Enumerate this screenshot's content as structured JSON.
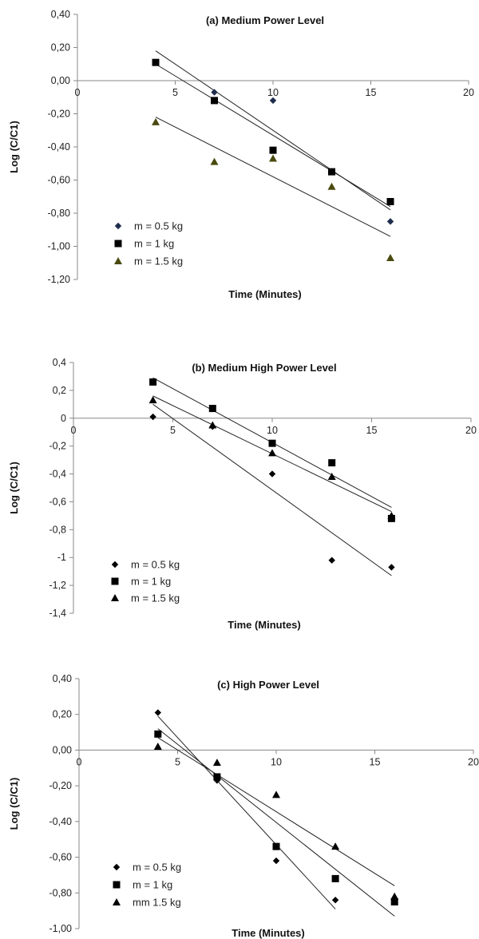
{
  "chart_data": [
    {
      "type": "scatter",
      "title": "(a) Medium Power Level",
      "xlabel": "Time (Minutes)",
      "ylabel": "Log (C/C1)",
      "xlim": [
        0,
        20
      ],
      "ylim": [
        -1.2,
        0.4
      ],
      "xticks": [
        "0",
        "5",
        "10",
        "15",
        "20"
      ],
      "yticks": [
        "0,40",
        "0,20",
        "0,00",
        "-0,20",
        "-0,40",
        "-0,60",
        "-0,80",
        "-1,00",
        "-1,20"
      ],
      "legend_position": "bottom-left",
      "series": [
        {
          "name": "m = 0.5 kg",
          "marker": "diamond",
          "color": "#1f2d4d",
          "x": [
            4,
            7,
            10,
            13,
            16
          ],
          "y": [
            0.11,
            -0.07,
            -0.12,
            -0.55,
            -0.85
          ],
          "trend": [
            [
              4,
              0.18
            ],
            [
              16,
              -0.78
            ]
          ]
        },
        {
          "name": "m = 1 kg",
          "marker": "square",
          "color": "#000000",
          "x": [
            4,
            7,
            10,
            13,
            16
          ],
          "y": [
            0.11,
            -0.12,
            -0.42,
            -0.55,
            -0.73
          ],
          "trend": [
            [
              4,
              0.1
            ],
            [
              16,
              -0.76
            ]
          ]
        },
        {
          "name": "m = 1.5 kg",
          "marker": "triangle",
          "color": "#4a4a10",
          "x": [
            4,
            7,
            10,
            13,
            16
          ],
          "y": [
            -0.25,
            -0.49,
            -0.47,
            -0.64,
            -1.07
          ],
          "trend": [
            [
              4,
              -0.22
            ],
            [
              16,
              -0.94
            ]
          ]
        }
      ]
    },
    {
      "type": "scatter",
      "title": "(b) Medium High Power Level",
      "xlabel": "Time (Minutes)",
      "ylabel": "Log (C/C1)",
      "xlim": [
        0,
        20
      ],
      "ylim": [
        -1.4,
        0.4
      ],
      "xticks": [
        "0",
        "5",
        "10",
        "15",
        "20"
      ],
      "yticks": [
        "0,4",
        "0,2",
        "0",
        "-0,2",
        "-0,4",
        "-0,6",
        "-0,8",
        "-1",
        "-1,2",
        "-1,4"
      ],
      "legend_position": "bottom-left",
      "series": [
        {
          "name": "m = 0.5 kg",
          "marker": "diamond",
          "color": "#000000",
          "x": [
            4,
            7,
            10,
            13,
            16
          ],
          "y": [
            0.01,
            -0.06,
            -0.4,
            -1.02,
            -1.07
          ],
          "trend": [
            [
              4,
              0.1
            ],
            [
              16,
              -1.13
            ]
          ]
        },
        {
          "name": "m = 1 kg",
          "marker": "square",
          "color": "#000000",
          "x": [
            4,
            7,
            10,
            13,
            16
          ],
          "y": [
            0.26,
            0.07,
            -0.18,
            -0.32,
            -0.72
          ],
          "trend": [
            [
              4,
              0.29
            ],
            [
              16,
              -0.64
            ]
          ]
        },
        {
          "name": "m = 1.5 kg",
          "marker": "triangle",
          "color": "#000000",
          "x": [
            4,
            7,
            10,
            13,
            16
          ],
          "y": [
            0.13,
            -0.05,
            -0.25,
            -0.42,
            -0.7
          ],
          "trend": [
            [
              4,
              0.16
            ],
            [
              16,
              -0.67
            ]
          ]
        }
      ]
    },
    {
      "type": "scatter",
      "title": "(c) High Power Level",
      "xlabel": "Time (Minutes)",
      "ylabel": "Log (C/C1)",
      "xlim": [
        0,
        20
      ],
      "ylim": [
        -1.0,
        0.4
      ],
      "xticks": [
        "0",
        "5",
        "10",
        "15",
        "20"
      ],
      "yticks": [
        "0,40",
        "0,20",
        "0,00",
        "-0,20",
        "-0,40",
        "-0,60",
        "-0,80",
        "-1,00"
      ],
      "legend_position": "bottom-left",
      "series": [
        {
          "name": "m = 0.5 kg",
          "marker": "diamond",
          "color": "#000000",
          "x": [
            4,
            7,
            10,
            13,
            16
          ],
          "y": [
            0.21,
            -0.17,
            -0.62,
            -0.84,
            -0.83
          ],
          "trend": [
            [
              4,
              0.19
            ],
            [
              13,
              -0.89
            ]
          ]
        },
        {
          "name": "m = 1 kg",
          "marker": "square",
          "color": "#000000",
          "x": [
            4,
            7,
            10,
            13,
            16
          ],
          "y": [
            0.09,
            -0.15,
            -0.54,
            -0.72,
            -0.85
          ],
          "trend": [
            [
              4,
              0.12
            ],
            [
              16,
              -0.93
            ]
          ]
        },
        {
          "name": "mm 1.5 kg",
          "marker": "triangle",
          "color": "#000000",
          "x": [
            4,
            7,
            10,
            13,
            16
          ],
          "y": [
            0.02,
            -0.07,
            -0.25,
            -0.54,
            -0.82
          ],
          "trend": [
            [
              4,
              0.07
            ],
            [
              16,
              -0.76
            ]
          ]
        }
      ]
    }
  ]
}
